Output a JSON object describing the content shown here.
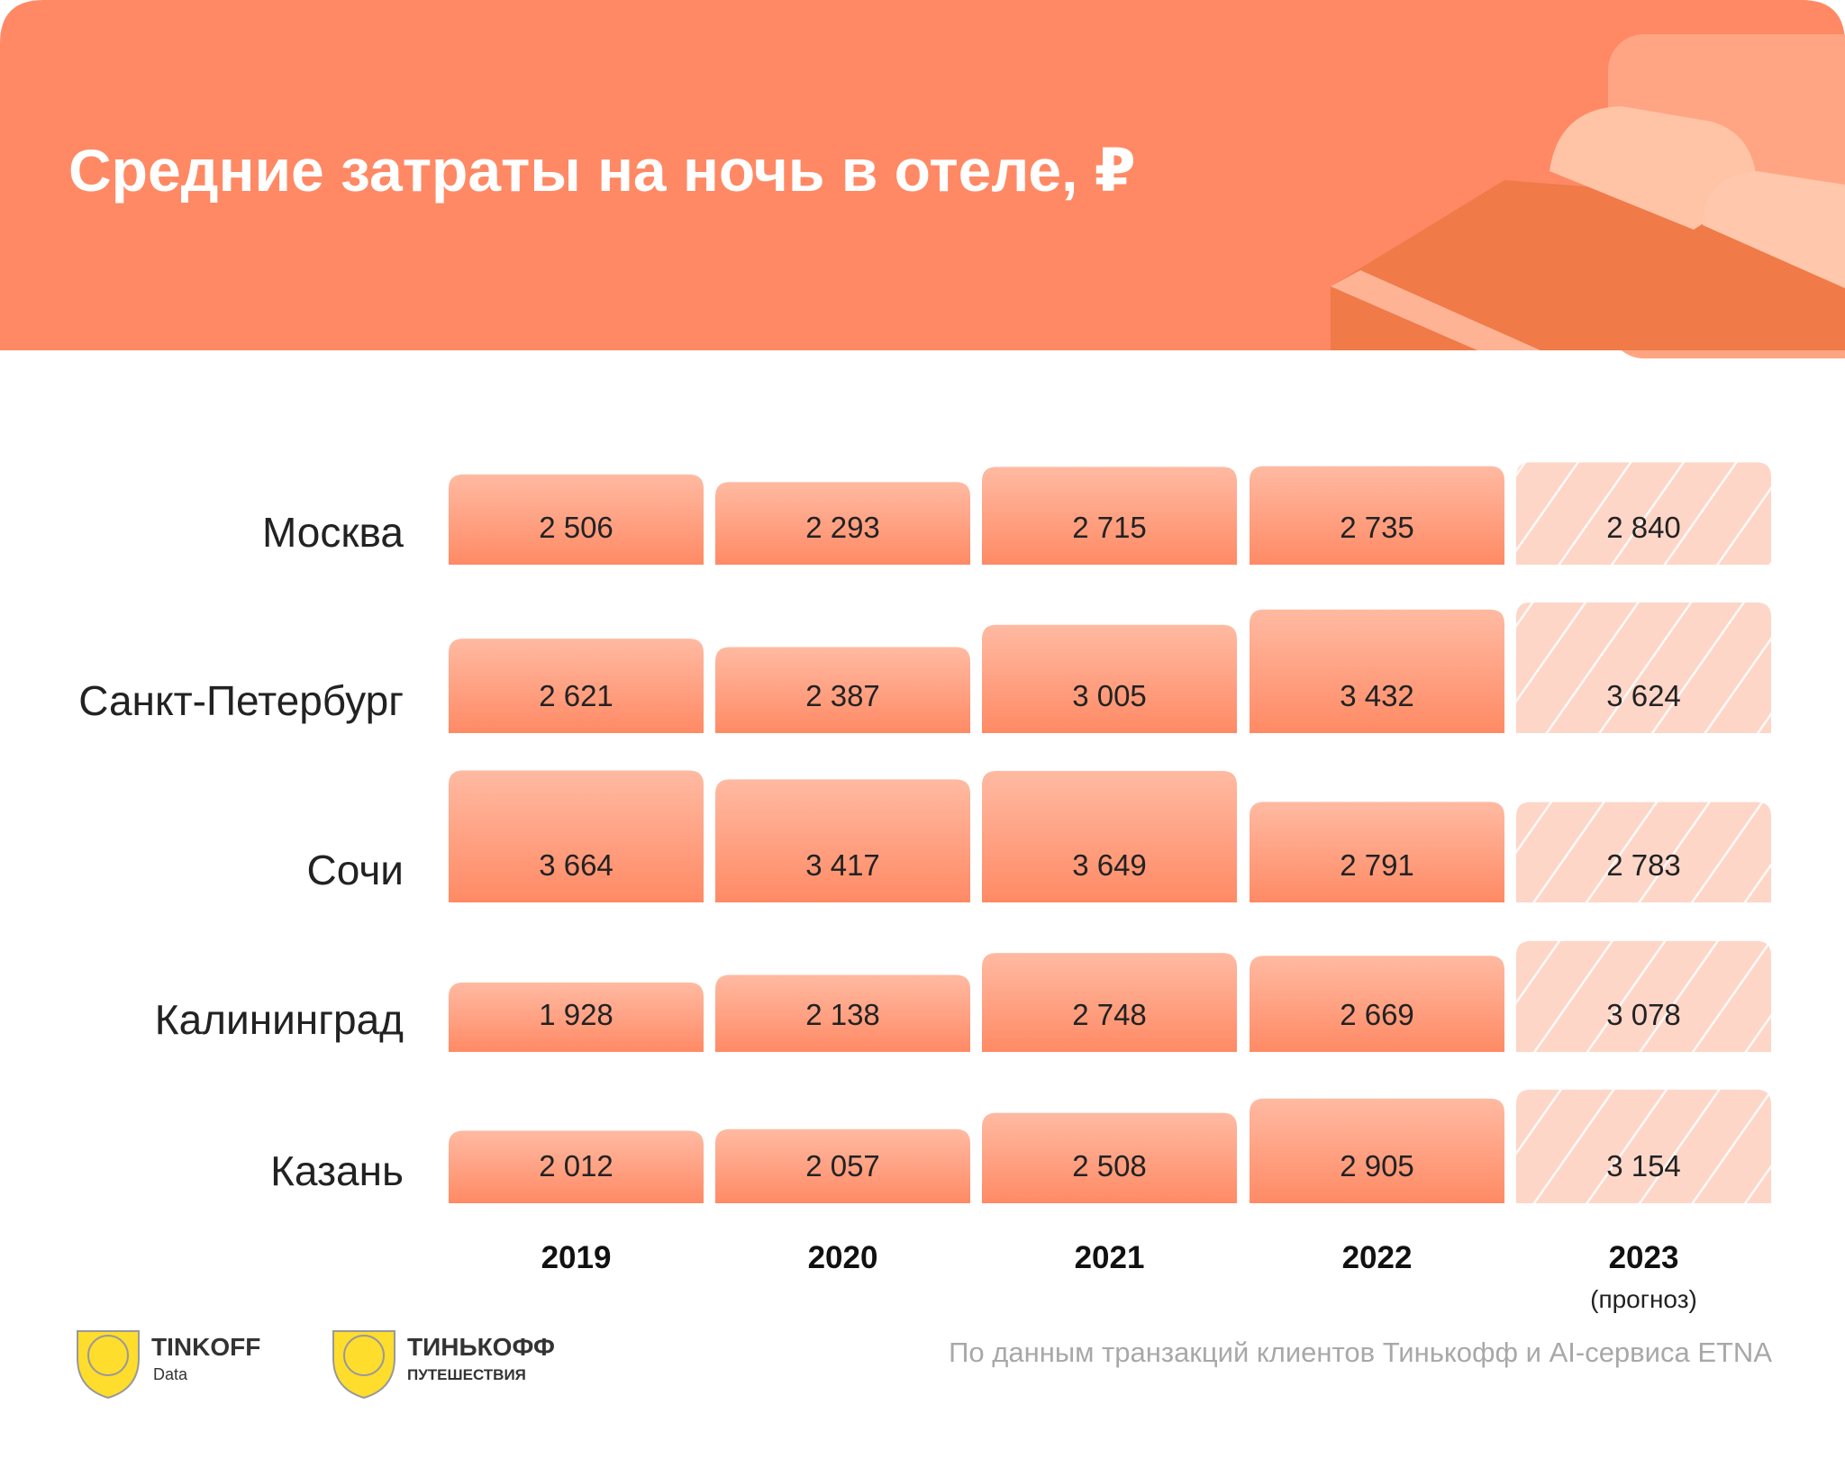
{
  "chart_data": {
    "type": "bar",
    "title": "Средние затраты на ночь в отеле, ₽",
    "categories": [
      "Москва",
      "Санкт-Петербург",
      "Сочи",
      "Калининград",
      "Казань"
    ],
    "series": [
      {
        "name": "2019",
        "color": "#ff8a65",
        "values": [
          2506,
          2621,
          3664,
          1928,
          2012
        ],
        "value_labels": [
          "2 506",
          "2 621",
          "3 664",
          "1 928",
          "2 012"
        ]
      },
      {
        "name": "2020",
        "color": "#ff8a65",
        "values": [
          2293,
          2387,
          3417,
          2138,
          2057
        ],
        "value_labels": [
          "2 293",
          "2 387",
          "3 417",
          "2 138",
          "2 057"
        ]
      },
      {
        "name": "2021",
        "color": "#ff8a65",
        "values": [
          2715,
          3005,
          3649,
          2748,
          2508
        ],
        "value_labels": [
          "2 715",
          "3 005",
          "3 649",
          "2 748",
          "2 508"
        ]
      },
      {
        "name": "2022",
        "color": "#ff8a65",
        "values": [
          2735,
          3432,
          2791,
          2669,
          2905
        ],
        "value_labels": [
          "2 735",
          "3 432",
          "2 791",
          "2 669",
          "2 905"
        ]
      },
      {
        "name": "2023",
        "note": "(прогноз)",
        "color": "#fdd2c2",
        "hatched": true,
        "values": [
          2840,
          3624,
          2783,
          3078,
          3154
        ],
        "value_labels": [
          "2 840",
          "3 624",
          "2 783",
          "3 078",
          "3 154"
        ]
      }
    ],
    "source": "По данным транзакций клиентов Тинькофф и AI-сервиса ETNA"
  },
  "logos": [
    {
      "name": "TINKOFF",
      "sub": "Data"
    },
    {
      "name": "ТИНЬКОФФ",
      "sub": "ПУТЕШЕСТВИЯ"
    }
  ]
}
